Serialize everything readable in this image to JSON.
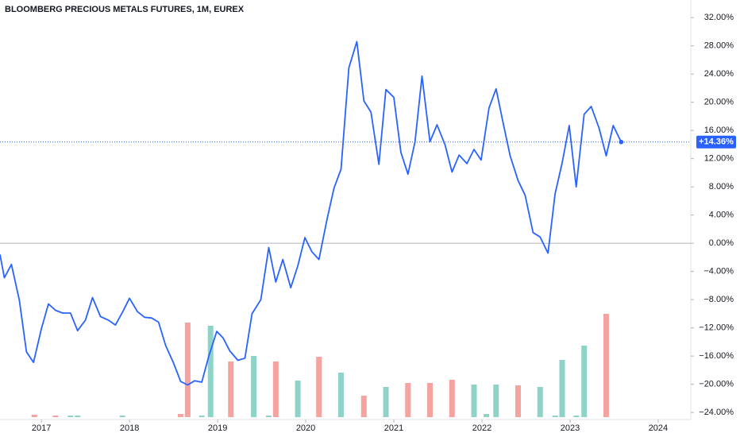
{
  "chart_data": {
    "type": "line",
    "title": "BLOOMBERG PRECIOUS METALS FUTURES, 1M, EUREX",
    "xlim": [
      2016.53,
      2024.37
    ],
    "xticks": [
      2017,
      2018,
      2019,
      2020,
      2021,
      2022,
      2023,
      2024
    ],
    "ylim": [
      -25,
      34.5
    ],
    "yticks": [
      {
        "value": 32,
        "label": "32.00%"
      },
      {
        "value": 28,
        "label": "28.00%"
      },
      {
        "value": 24,
        "label": "24.00%"
      },
      {
        "value": 20,
        "label": "20.00%"
      },
      {
        "value": 16,
        "label": "16.00%"
      },
      {
        "value": 12,
        "label": "12.00%"
      },
      {
        "value": 8,
        "label": "8.00%"
      },
      {
        "value": 4,
        "label": "4.00%"
      },
      {
        "value": 0,
        "label": "0.00%"
      },
      {
        "value": -4,
        "label": "−4.00%"
      },
      {
        "value": -8,
        "label": "−8.00%"
      },
      {
        "value": -12,
        "label": "−12.00%"
      },
      {
        "value": -16,
        "label": "−16.00%"
      },
      {
        "value": -20,
        "label": "−20.00%"
      },
      {
        "value": -24,
        "label": "−24.00%"
      }
    ],
    "zero_line_color": "#b2b5be",
    "price_label": {
      "value": 14.36,
      "label": "+14.36%"
    },
    "series": [
      {
        "color": "#2962ff",
        "x": [
          2016.53,
          2016.58,
          2016.66,
          2016.75,
          2016.83,
          2016.91,
          2017.0,
          2017.08,
          2017.16,
          2017.24,
          2017.33,
          2017.41,
          2017.5,
          2017.58,
          2017.67,
          2017.76,
          2017.84,
          2017.92,
          2018.0,
          2018.09,
          2018.17,
          2018.25,
          2018.33,
          2018.41,
          2018.5,
          2018.58,
          2018.66,
          2018.74,
          2018.82,
          2018.9,
          2018.99,
          2019.06,
          2019.14,
          2019.23,
          2019.31,
          2019.39,
          2019.49,
          2019.58,
          2019.66,
          2019.74,
          2019.83,
          2019.91,
          2019.99,
          2020.07,
          2020.15,
          2020.24,
          2020.32,
          2020.4,
          2020.49,
          2020.58,
          2020.66,
          2020.74,
          2020.83,
          2020.91,
          2021.0,
          2021.08,
          2021.16,
          2021.24,
          2021.32,
          2021.41,
          2021.49,
          2021.58,
          2021.66,
          2021.74,
          2021.83,
          2021.91,
          2021.99,
          2022.08,
          2022.16,
          2022.24,
          2022.32,
          2022.41,
          2022.49,
          2022.58,
          2022.66,
          2022.75,
          2022.83,
          2022.91,
          2022.99,
          2023.07,
          2023.16,
          2023.24,
          2023.33,
          2023.41,
          2023.49,
          2023.58
        ],
        "values": [
          -1.6,
          -4.9,
          -3.0,
          -8.1,
          -15.4,
          -16.9,
          -12.1,
          -8.6,
          -9.5,
          -9.9,
          -9.9,
          -12.4,
          -10.9,
          -7.7,
          -10.4,
          -10.9,
          -11.6,
          -9.8,
          -7.8,
          -9.7,
          -10.5,
          -10.6,
          -11.2,
          -14.5,
          -17.0,
          -19.6,
          -20.1,
          -19.5,
          -19.7,
          -16.0,
          -12.5,
          -13.4,
          -15.3,
          -16.6,
          -16.3,
          -10.0,
          -8.0,
          -0.6,
          -5.5,
          -2.3,
          -6.3,
          -3.2,
          0.8,
          -1.2,
          -2.3,
          3.3,
          7.8,
          10.5,
          24.9,
          28.6,
          20.2,
          18.6,
          11.2,
          21.8,
          20.7,
          12.9,
          9.8,
          14.4,
          23.7,
          14.4,
          16.8,
          14.0,
          10.1,
          12.5,
          11.3,
          13.3,
          11.8,
          19.2,
          21.9,
          17.1,
          12.4,
          8.9,
          6.8,
          1.5,
          0.9,
          -1.4,
          7.0,
          11.4,
          16.7,
          8.0,
          18.3,
          19.4,
          16.3,
          12.4,
          16.7,
          14.36
        ]
      },
      {
        "type": "bar",
        "axis": "volume",
        "x": [
          2016.92,
          2017.16,
          2017.33,
          2017.41,
          2017.92,
          2018.58,
          2018.66,
          2018.82,
          2018.92,
          2019.15,
          2019.41,
          2019.58,
          2019.66,
          2019.91,
          2020.15,
          2020.4,
          2020.66,
          2020.91,
          2021.16,
          2021.41,
          2021.66,
          2021.91,
          2022.05,
          2022.16,
          2022.41,
          2022.66,
          2022.83,
          2022.91,
          2023.07,
          2023.16,
          2023.41
        ],
        "values": [
          3,
          2,
          2,
          2,
          2,
          4,
          119,
          2,
          115,
          70,
          77,
          2,
          70,
          46,
          76,
          56,
          27,
          38,
          43,
          43,
          47,
          41,
          4,
          41,
          40,
          38,
          2,
          72,
          2,
          90,
          130
        ],
        "colors": [
          "#f5a3a0",
          "#f5a3a0",
          "#8fd3c8",
          "#8fd3c8",
          "#8fd3c8",
          "#f5a3a0",
          "#f5a3a0",
          "#8fd3c8",
          "#8fd3c8",
          "#f5a3a0",
          "#8fd3c8",
          "#8fd3c8",
          "#f5a3a0",
          "#8fd3c8",
          "#f5a3a0",
          "#8fd3c8",
          "#f5a3a0",
          "#8fd3c8",
          "#f5a3a0",
          "#f5a3a0",
          "#f5a3a0",
          "#8fd3c8",
          "#8fd3c8",
          "#8fd3c8",
          "#f5a3a0",
          "#8fd3c8",
          "#8fd3c8",
          "#8fd3c8",
          "#8fd3c8",
          "#8fd3c8",
          "#f5a3a0"
        ]
      }
    ]
  }
}
